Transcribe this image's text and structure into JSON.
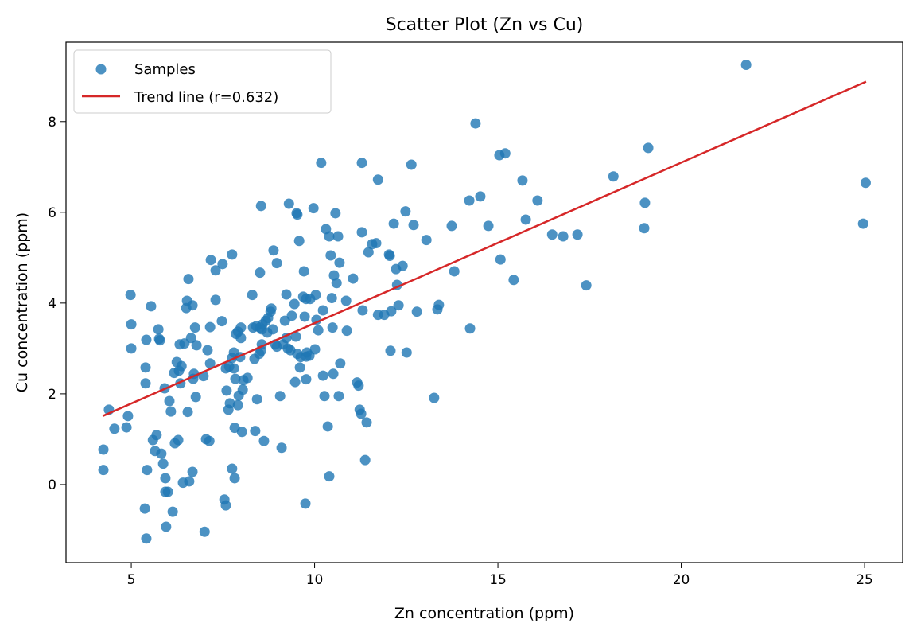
{
  "chart_data": {
    "type": "scatter",
    "title": "Scatter Plot (Zn vs Cu)",
    "xlabel": "Zn concentration (ppm)",
    "ylabel": "Cu concentration (ppm)",
    "xlim": [
      3.22,
      26.04
    ],
    "ylim": [
      -1.72,
      9.75
    ],
    "xticks": [
      5,
      10,
      15,
      20,
      25
    ],
    "yticks": [
      0,
      2,
      4,
      6,
      8
    ],
    "grid": false,
    "legend_position": "top-left",
    "colors": {
      "points": "#1f77b4",
      "trend": "#d62728"
    },
    "series": [
      {
        "name": "Samples",
        "points": [
          [
            4.24,
            0.32
          ],
          [
            4.24,
            0.77
          ],
          [
            4.39,
            1.65
          ],
          [
            4.54,
            1.23
          ],
          [
            4.87,
            1.26
          ],
          [
            4.91,
            1.51
          ],
          [
            4.98,
            4.18
          ],
          [
            5.0,
            3.53
          ],
          [
            5.0,
            3.0
          ],
          [
            5.39,
            2.58
          ],
          [
            5.39,
            2.23
          ],
          [
            5.41,
            3.19
          ],
          [
            5.54,
            3.93
          ],
          [
            5.37,
            -0.53
          ],
          [
            5.41,
            -1.19
          ],
          [
            5.43,
            0.32
          ],
          [
            5.59,
            0.98
          ],
          [
            5.65,
            0.74
          ],
          [
            5.69,
            1.09
          ],
          [
            5.74,
            3.42
          ],
          [
            5.76,
            3.21
          ],
          [
            5.78,
            3.18
          ],
          [
            5.82,
            0.68
          ],
          [
            5.87,
            0.46
          ],
          [
            5.91,
            2.12
          ],
          [
            5.93,
            0.14
          ],
          [
            5.93,
            -0.16
          ],
          [
            5.95,
            -0.93
          ],
          [
            6.0,
            -0.16
          ],
          [
            6.04,
            1.84
          ],
          [
            6.08,
            1.61
          ],
          [
            6.13,
            -0.6
          ],
          [
            6.17,
            2.46
          ],
          [
            6.19,
            0.91
          ],
          [
            6.24,
            2.7
          ],
          [
            6.28,
            0.98
          ],
          [
            6.3,
            2.51
          ],
          [
            6.32,
            3.09
          ],
          [
            6.34,
            2.23
          ],
          [
            6.37,
            2.61
          ],
          [
            6.41,
            0.04
          ],
          [
            6.45,
            3.11
          ],
          [
            6.5,
            3.89
          ],
          [
            6.52,
            4.05
          ],
          [
            6.54,
            1.6
          ],
          [
            6.56,
            4.53
          ],
          [
            6.58,
            0.07
          ],
          [
            6.63,
            3.23
          ],
          [
            6.67,
            0.28
          ],
          [
            6.67,
            3.95
          ],
          [
            6.69,
            2.33
          ],
          [
            6.71,
            2.44
          ],
          [
            6.74,
            3.46
          ],
          [
            6.76,
            1.93
          ],
          [
            6.78,
            3.07
          ],
          [
            6.97,
            2.39
          ],
          [
            7.0,
            -1.04
          ],
          [
            7.04,
            1.0
          ],
          [
            7.08,
            2.96
          ],
          [
            7.13,
            0.96
          ],
          [
            7.15,
            3.47
          ],
          [
            7.15,
            2.67
          ],
          [
            7.17,
            4.95
          ],
          [
            7.3,
            4.72
          ],
          [
            7.3,
            4.07
          ],
          [
            7.47,
            3.6
          ],
          [
            7.49,
            4.86
          ],
          [
            7.54,
            -0.33
          ],
          [
            7.58,
            -0.46
          ],
          [
            7.58,
            2.56
          ],
          [
            7.6,
            2.07
          ],
          [
            7.65,
            1.65
          ],
          [
            7.69,
            1.79
          ],
          [
            7.67,
            2.6
          ],
          [
            7.75,
            5.07
          ],
          [
            7.75,
            0.35
          ],
          [
            7.75,
            2.79
          ],
          [
            7.8,
            2.91
          ],
          [
            7.8,
            2.56
          ],
          [
            7.82,
            0.14
          ],
          [
            7.82,
            1.25
          ],
          [
            7.84,
            2.33
          ],
          [
            7.86,
            3.32
          ],
          [
            7.91,
            3.37
          ],
          [
            7.91,
            1.75
          ],
          [
            7.93,
            1.96
          ],
          [
            7.97,
            2.81
          ],
          [
            7.99,
            3.23
          ],
          [
            7.99,
            3.46
          ],
          [
            8.02,
            1.16
          ],
          [
            8.04,
            2.09
          ],
          [
            8.06,
            2.3
          ],
          [
            8.17,
            2.35
          ],
          [
            8.3,
            4.18
          ],
          [
            8.32,
            3.46
          ],
          [
            8.36,
            2.77
          ],
          [
            8.38,
            1.18
          ],
          [
            8.41,
            3.49
          ],
          [
            8.43,
            1.88
          ],
          [
            8.49,
            2.88
          ],
          [
            8.51,
            3.46
          ],
          [
            8.51,
            4.67
          ],
          [
            8.54,
            6.14
          ],
          [
            8.54,
            2.95
          ],
          [
            8.56,
            3.42
          ],
          [
            8.56,
            3.09
          ],
          [
            8.58,
            3.53
          ],
          [
            8.62,
            0.96
          ],
          [
            8.67,
            3.61
          ],
          [
            8.71,
            3.35
          ],
          [
            8.73,
            3.67
          ],
          [
            8.8,
            3.81
          ],
          [
            8.82,
            3.88
          ],
          [
            8.86,
            3.42
          ],
          [
            8.88,
            5.16
          ],
          [
            8.93,
            3.09
          ],
          [
            8.97,
            3.04
          ],
          [
            8.97,
            4.88
          ],
          [
            9.06,
            1.95
          ],
          [
            9.1,
            0.81
          ],
          [
            9.14,
            3.09
          ],
          [
            9.19,
            3.61
          ],
          [
            9.23,
            3.23
          ],
          [
            9.23,
            4.19
          ],
          [
            9.27,
            3.0
          ],
          [
            9.3,
            6.19
          ],
          [
            9.34,
            2.96
          ],
          [
            9.38,
            3.72
          ],
          [
            9.45,
            3.98
          ],
          [
            9.47,
            2.26
          ],
          [
            9.49,
            3.26
          ],
          [
            9.51,
            5.98
          ],
          [
            9.53,
            5.95
          ],
          [
            9.53,
            2.88
          ],
          [
            9.58,
            5.37
          ],
          [
            9.6,
            2.58
          ],
          [
            9.62,
            2.81
          ],
          [
            9.69,
            4.14
          ],
          [
            9.71,
            4.7
          ],
          [
            9.73,
            3.7
          ],
          [
            9.75,
            -0.42
          ],
          [
            9.77,
            4.09
          ],
          [
            9.77,
            2.82
          ],
          [
            9.77,
            2.32
          ],
          [
            9.79,
            2.91
          ],
          [
            9.86,
            2.84
          ],
          [
            9.88,
            4.09
          ],
          [
            9.97,
            6.09
          ],
          [
            10.01,
            2.98
          ],
          [
            10.03,
            4.18
          ],
          [
            10.05,
            3.63
          ],
          [
            10.1,
            3.4
          ],
          [
            10.18,
            7.09
          ],
          [
            10.23,
            2.4
          ],
          [
            10.23,
            3.84
          ],
          [
            10.27,
            1.95
          ],
          [
            10.31,
            5.63
          ],
          [
            10.36,
            1.28
          ],
          [
            10.4,
            0.18
          ],
          [
            10.4,
            5.47
          ],
          [
            10.44,
            5.05
          ],
          [
            10.47,
            4.11
          ],
          [
            10.49,
            3.46
          ],
          [
            10.51,
            2.44
          ],
          [
            10.53,
            4.61
          ],
          [
            10.57,
            5.98
          ],
          [
            10.6,
            4.44
          ],
          [
            10.64,
            5.47
          ],
          [
            10.66,
            1.95
          ],
          [
            10.68,
            4.89
          ],
          [
            10.7,
            2.67
          ],
          [
            10.86,
            4.05
          ],
          [
            10.88,
            3.39
          ],
          [
            11.05,
            4.54
          ],
          [
            11.16,
            2.25
          ],
          [
            11.2,
            2.18
          ],
          [
            11.23,
            1.65
          ],
          [
            11.27,
            1.56
          ],
          [
            11.29,
            7.09
          ],
          [
            11.29,
            5.56
          ],
          [
            11.31,
            3.84
          ],
          [
            11.38,
            0.54
          ],
          [
            11.42,
            1.37
          ],
          [
            11.47,
            5.12
          ],
          [
            11.57,
            5.3
          ],
          [
            11.68,
            5.32
          ],
          [
            11.73,
            6.72
          ],
          [
            11.73,
            3.74
          ],
          [
            11.9,
            3.74
          ],
          [
            12.03,
            5.07
          ],
          [
            12.05,
            5.04
          ],
          [
            12.07,
            2.95
          ],
          [
            12.09,
            3.82
          ],
          [
            12.16,
            5.75
          ],
          [
            12.22,
            4.75
          ],
          [
            12.25,
            4.4
          ],
          [
            12.29,
            3.95
          ],
          [
            12.4,
            4.82
          ],
          [
            12.48,
            6.02
          ],
          [
            12.51,
            2.91
          ],
          [
            12.64,
            7.05
          ],
          [
            12.7,
            5.72
          ],
          [
            12.79,
            3.81
          ],
          [
            13.05,
            5.39
          ],
          [
            13.26,
            1.91
          ],
          [
            13.35,
            3.86
          ],
          [
            13.39,
            3.96
          ],
          [
            13.74,
            5.7
          ],
          [
            13.81,
            4.7
          ],
          [
            14.22,
            6.26
          ],
          [
            14.24,
            3.44
          ],
          [
            14.39,
            7.96
          ],
          [
            14.52,
            6.35
          ],
          [
            14.74,
            5.7
          ],
          [
            15.04,
            7.26
          ],
          [
            15.07,
            4.96
          ],
          [
            15.2,
            7.3
          ],
          [
            15.43,
            4.51
          ],
          [
            15.67,
            6.7
          ],
          [
            15.76,
            5.84
          ],
          [
            16.08,
            6.26
          ],
          [
            16.48,
            5.51
          ],
          [
            16.78,
            5.47
          ],
          [
            17.17,
            5.51
          ],
          [
            17.41,
            4.39
          ],
          [
            18.15,
            6.79
          ],
          [
            18.99,
            5.65
          ],
          [
            19.01,
            6.21
          ],
          [
            19.1,
            7.42
          ],
          [
            21.77,
            9.25
          ],
          [
            24.96,
            5.75
          ],
          [
            25.03,
            6.65
          ]
        ]
      },
      {
        "name": "Trend line (r=0.632)",
        "line": [
          [
            4.22,
            1.51
          ],
          [
            25.04,
            8.88
          ]
        ]
      }
    ]
  }
}
